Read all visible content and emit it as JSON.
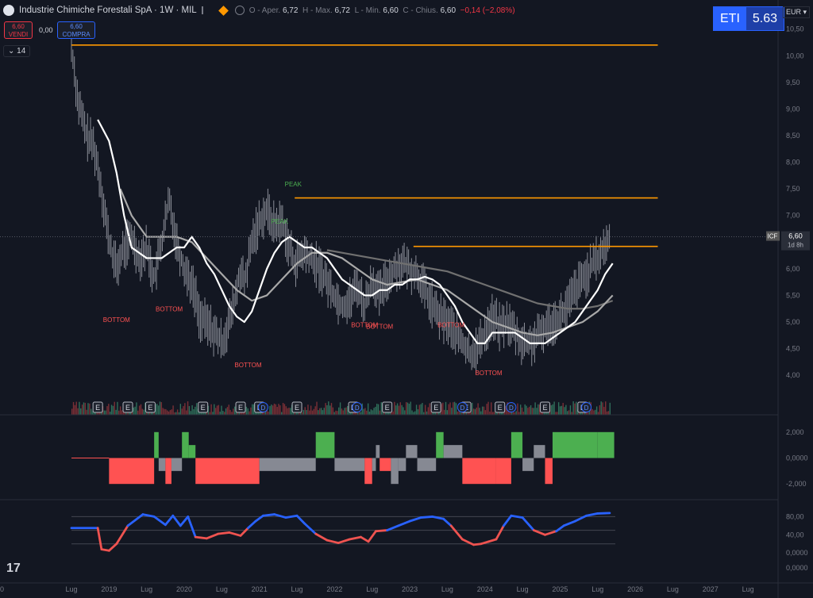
{
  "header": {
    "title": "Industrie Chimiche Forestali SpA · 1W · MIL",
    "open_label": "O - Aper.",
    "open": "6,72",
    "high_label": "H - Max.",
    "high": "6,72",
    "low_label": "L - Min.",
    "low": "6,60",
    "close_label": "C - Chius.",
    "close": "6,60",
    "change": "−0,14 (−2,08%)"
  },
  "trade": {
    "sell_price": "6,60",
    "sell_label": "VENDI",
    "spread": "0,00",
    "buy_price": "6,60",
    "buy_label": "COMPRA"
  },
  "indicator_count": "14",
  "eti": {
    "label": "ETI",
    "value": "5.63"
  },
  "currency": "EUR",
  "price_tag": {
    "symbol": "ICF",
    "value": "6,60",
    "countdown": "1d 8h"
  },
  "colors": {
    "up": "#4caf50",
    "down": "#ff5252",
    "neutral": "#868993",
    "orange": "#ff9800",
    "rsi_up": "#2962ff",
    "rsi_down": "#ef5350",
    "bg": "#131722"
  },
  "chart_data": [
    {
      "type": "line",
      "x_tick_labels": [
        "Lug",
        "2019",
        "Lug",
        "2020",
        "Lug",
        "2021",
        "Lug",
        "2022",
        "Lug",
        "2023",
        "Lug",
        "2024",
        "Lug",
        "2025",
        "Lug",
        "2026",
        "Lug",
        "2027",
        "Lug",
        "20"
      ],
      "y_ticks": [
        "10,50",
        "10,00",
        "9,50",
        "9,00",
        "8,50",
        "8,00",
        "7,50",
        "7,00",
        "6,50",
        "6,00",
        "5,50",
        "5,00",
        "4,50",
        "4,00"
      ],
      "ylim": [
        3.6,
        10.6
      ],
      "price_x": [
        2018.5,
        2018.58,
        2018.7,
        2018.8,
        2018.9,
        2019.0,
        2019.1,
        2019.2,
        2019.3,
        2019.4,
        2019.5,
        2019.6,
        2019.7,
        2019.8,
        2019.9,
        2020.0,
        2020.05,
        2020.1,
        2020.15,
        2020.2,
        2020.35,
        2020.5,
        2020.6,
        2020.7,
        2020.75,
        2020.8,
        2020.9,
        2021.0,
        2021.1,
        2021.2,
        2021.3,
        2021.4,
        2021.47,
        2021.6,
        2021.8,
        2022.0,
        2022.1,
        2022.2,
        2022.3,
        2022.4,
        2022.5,
        2022.6,
        2022.7,
        2022.8,
        2022.9,
        2023.0,
        2023.1,
        2023.2,
        2023.3,
        2023.4,
        2023.5,
        2023.6,
        2023.7,
        2023.8,
        2023.9,
        2024.0,
        2024.1,
        2024.2,
        2024.3,
        2024.4,
        2024.5,
        2024.6,
        2024.7,
        2024.8,
        2024.9,
        2025.0,
        2025.1,
        2025.2,
        2025.3,
        2025.4,
        2025.5,
        2025.6,
        2025.66
      ],
      "price_y": [
        10.2,
        9.2,
        8.5,
        8.3,
        7.5,
        6.5,
        6.0,
        6.4,
        6.6,
        6.2,
        6.4,
        5.8,
        6.5,
        7.3,
        6.5,
        6.0,
        5.9,
        5.7,
        5.5,
        5.1,
        4.9,
        4.6,
        5.0,
        5.6,
        6.0,
        5.7,
        6.5,
        6.9,
        7.1,
        6.8,
        6.9,
        6.4,
        6.1,
        6.3,
        6.0,
        5.5,
        5.3,
        5.4,
        5.7,
        5.3,
        5.8,
        5.5,
        5.8,
        6.0,
        6.1,
        6.0,
        5.9,
        5.6,
        5.3,
        5.1,
        5.0,
        4.8,
        4.6,
        4.4,
        4.5,
        4.8,
        5.1,
        4.9,
        5.0,
        4.8,
        4.6,
        4.6,
        4.7,
        4.9,
        5.0,
        5.1,
        5.3,
        5.6,
        5.8,
        6.0,
        6.2,
        6.4,
        6.6
      ],
      "ma_fast_x": [
        2018.85,
        2019.0,
        2019.1,
        2019.2,
        2019.3,
        2019.4,
        2019.5,
        2019.6,
        2019.7,
        2019.8,
        2019.9,
        2020.0,
        2020.1,
        2020.2,
        2020.3,
        2020.4,
        2020.5,
        2020.6,
        2020.7,
        2020.8,
        2020.9,
        2021.0,
        2021.1,
        2021.2,
        2021.3,
        2021.4,
        2021.5,
        2021.6,
        2021.7,
        2021.8,
        2021.9,
        2022.0,
        2022.1,
        2022.2,
        2022.3,
        2022.4,
        2022.5,
        2022.6,
        2022.7,
        2022.8,
        2022.9,
        2023.0,
        2023.1,
        2023.2,
        2023.3,
        2023.4,
        2023.5,
        2023.6,
        2023.7,
        2023.8,
        2023.9,
        2024.0,
        2024.1,
        2024.2,
        2024.3,
        2024.4,
        2024.5,
        2024.6,
        2024.7,
        2024.8,
        2024.9,
        2025.0,
        2025.1,
        2025.2,
        2025.3,
        2025.4,
        2025.5,
        2025.6,
        2025.7
      ],
      "ma_fast_y": [
        8.8,
        8.4,
        7.8,
        7.0,
        6.4,
        6.3,
        6.2,
        6.2,
        6.2,
        6.3,
        6.4,
        6.4,
        6.6,
        6.4,
        6.1,
        5.9,
        5.6,
        5.3,
        5.1,
        5.0,
        5.2,
        5.6,
        6.0,
        6.3,
        6.5,
        6.6,
        6.5,
        6.4,
        6.4,
        6.3,
        6.2,
        6.0,
        5.8,
        5.7,
        5.6,
        5.5,
        5.5,
        5.6,
        5.6,
        5.7,
        5.7,
        5.8,
        5.8,
        5.85,
        5.8,
        5.7,
        5.5,
        5.3,
        5.0,
        4.8,
        4.6,
        4.6,
        4.8,
        4.8,
        4.8,
        4.8,
        4.7,
        4.6,
        4.6,
        4.6,
        4.7,
        4.8,
        4.9,
        5.0,
        5.2,
        5.4,
        5.6,
        5.9,
        6.1
      ],
      "ma_mid_x": [
        2019.15,
        2019.3,
        2019.5,
        2019.7,
        2019.9,
        2020.1,
        2020.3,
        2020.5,
        2020.7,
        2020.9,
        2021.1,
        2021.3,
        2021.5,
        2021.7,
        2021.9,
        2022.1,
        2022.3,
        2022.5,
        2022.7,
        2022.9,
        2023.1,
        2023.3,
        2023.5,
        2023.7,
        2023.9,
        2024.1,
        2024.3,
        2024.5,
        2024.7,
        2024.9,
        2025.1,
        2025.3,
        2025.5,
        2025.7
      ],
      "ma_mid_y": [
        7.5,
        7.0,
        6.6,
        6.6,
        6.6,
        6.5,
        6.2,
        5.9,
        5.6,
        5.4,
        5.5,
        5.8,
        6.1,
        6.3,
        6.3,
        6.2,
        6.0,
        5.8,
        5.7,
        5.75,
        5.8,
        5.7,
        5.6,
        5.4,
        5.2,
        5.0,
        4.9,
        4.8,
        4.75,
        4.8,
        4.9,
        5.0,
        5.2,
        5.5
      ],
      "ma_slow_x": [
        2021.9,
        2022.1,
        2022.3,
        2022.5,
        2022.7,
        2022.9,
        2023.1,
        2023.3,
        2023.5,
        2023.7,
        2023.9,
        2024.1,
        2024.3,
        2024.5,
        2024.7,
        2024.9,
        2025.1,
        2025.3,
        2025.5,
        2025.7
      ],
      "ma_slow_y": [
        6.35,
        6.3,
        6.25,
        6.2,
        6.15,
        6.1,
        6.05,
        6.0,
        5.95,
        5.85,
        5.75,
        5.65,
        5.55,
        5.45,
        5.35,
        5.3,
        5.25,
        5.25,
        5.3,
        5.4
      ],
      "hlines": [
        {
          "y": 10.2,
          "x0": 2018.5,
          "x1": 2026.3
        },
        {
          "y": 7.33,
          "x0": 2021.47,
          "x1": 2026.3
        },
        {
          "y": 6.42,
          "x0": 2023.05,
          "x1": 2026.3
        }
      ],
      "annotations": [
        {
          "text": "PEAK",
          "x": 2021.45,
          "y": 7.55,
          "kind": "peak"
        },
        {
          "text": "PEAK",
          "x": 2021.27,
          "y": 6.85,
          "kind": "peak"
        },
        {
          "text": "BOTTOM",
          "x": 2019.1,
          "y": 5.0,
          "kind": "bottom"
        },
        {
          "text": "BOTTOM",
          "x": 2019.8,
          "y": 5.2,
          "kind": "bottom"
        },
        {
          "text": "BOTTOM",
          "x": 2020.85,
          "y": 4.15,
          "kind": "bottom"
        },
        {
          "text": "BOTTOM",
          "x": 2022.4,
          "y": 4.9,
          "kind": "bottom"
        },
        {
          "text": "BOTTOM",
          "x": 2022.6,
          "y": 4.87,
          "kind": "bottom"
        },
        {
          "text": "BOTTOM",
          "x": 2023.55,
          "y": 4.9,
          "kind": "bottom"
        },
        {
          "text": "BOTTOM",
          "x": 2024.05,
          "y": 4.0,
          "kind": "bottom"
        }
      ],
      "earnings_x": [
        2018.85,
        2019.25,
        2019.55,
        2020.25,
        2020.75,
        2021.0,
        2021.5,
        2022.25,
        2022.7,
        2023.35,
        2023.75,
        2024.2,
        2024.8,
        2025.3
      ],
      "dividend_x": [
        2021.05,
        2022.3,
        2023.7,
        2024.35,
        2025.35
      ],
      "earnings_label": "E",
      "dividend_label": "D"
    },
    {
      "type": "bar",
      "y_ticks": [
        "2,000",
        "0,0000",
        "-2,000"
      ],
      "ylim": [
        -2.6,
        2.6
      ],
      "x": [
        2018.5,
        2019.0,
        2019.6,
        2019.66,
        2019.75,
        2019.83,
        2019.97,
        2020.06,
        2020.15,
        2020.85,
        2021.0,
        2021.75,
        2022.0,
        2022.4,
        2022.5,
        2022.55,
        2022.6,
        2022.75,
        2022.85,
        2022.95,
        2023.1,
        2023.35,
        2023.45,
        2023.7,
        2024.15,
        2024.35,
        2024.5,
        2024.65,
        2024.8,
        2024.9,
        2025.5,
        2025.72
      ],
      "values": [
        0,
        -2,
        2,
        -1,
        -2,
        -1,
        2,
        1,
        -2,
        -2,
        -1,
        2,
        -1,
        -2,
        -1,
        1,
        -1,
        -2,
        -1,
        1,
        -1,
        2,
        1,
        -2,
        -2,
        2,
        -1,
        1,
        -2,
        2,
        2,
        2
      ],
      "colors": [
        "down",
        "down",
        "up",
        "neutral",
        "down",
        "neutral",
        "up",
        "up",
        "down",
        "down",
        "neutral",
        "up",
        "neutral",
        "down",
        "neutral",
        "neutral",
        "down",
        "neutral",
        "neutral",
        "neutral",
        "neutral",
        "up",
        "neutral",
        "down",
        "down",
        "up",
        "neutral",
        "neutral",
        "down",
        "up",
        "up",
        "up"
      ]
    },
    {
      "type": "line",
      "y_ticks": [
        "80,00",
        "40,00",
        "0,0000"
      ],
      "ylim": [
        -5,
        100
      ],
      "hline_values": [
        80,
        50,
        20
      ],
      "x": [
        2018.5,
        2018.85,
        2018.9,
        2019.0,
        2019.1,
        2019.25,
        2019.45,
        2019.6,
        2019.75,
        2019.85,
        2019.95,
        2020.05,
        2020.15,
        2020.3,
        2020.45,
        2020.6,
        2020.75,
        2020.85,
        2020.95,
        2021.05,
        2021.2,
        2021.35,
        2021.5,
        2021.6,
        2021.75,
        2021.9,
        2022.05,
        2022.2,
        2022.35,
        2022.45,
        2022.55,
        2022.7,
        2022.85,
        2023.0,
        2023.15,
        2023.3,
        2023.45,
        2023.55,
        2023.7,
        2023.85,
        2023.95,
        2024.05,
        2024.15,
        2024.25,
        2024.35,
        2024.5,
        2024.65,
        2024.8,
        2024.95,
        2025.05,
        2025.2,
        2025.35,
        2025.5,
        2025.66
      ],
      "values": [
        55,
        55,
        8,
        5,
        20,
        60,
        85,
        80,
        62,
        82,
        60,
        80,
        35,
        32,
        42,
        45,
        38,
        55,
        70,
        82,
        85,
        78,
        82,
        65,
        42,
        28,
        22,
        30,
        35,
        25,
        48,
        50,
        60,
        70,
        78,
        80,
        75,
        60,
        30,
        18,
        20,
        25,
        30,
        60,
        82,
        78,
        50,
        40,
        48,
        60,
        70,
        82,
        87,
        88
      ]
    }
  ]
}
